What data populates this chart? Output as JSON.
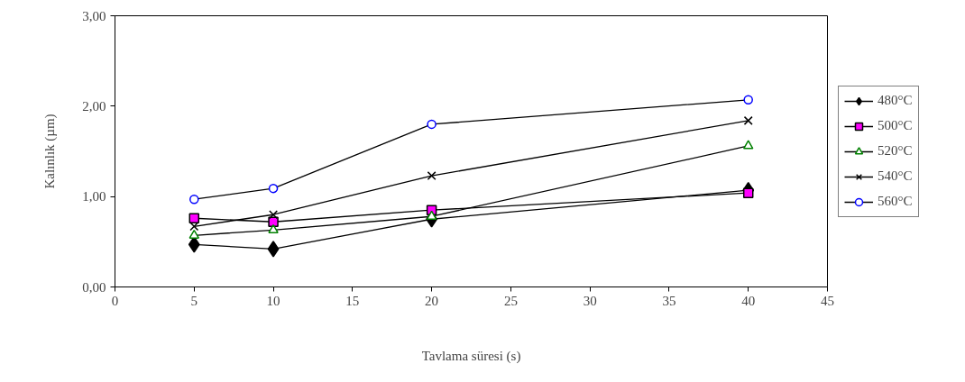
{
  "chart_data": {
    "type": "line",
    "xlabel": "Tavlama süresi (s)",
    "ylabel": "Kalınlık (µm)",
    "x": [
      5,
      10,
      20,
      40
    ],
    "xlim": [
      0,
      45
    ],
    "xticks": [
      0,
      5,
      10,
      15,
      20,
      25,
      30,
      35,
      40,
      45
    ],
    "ylim": [
      0,
      3
    ],
    "yticks": [
      {
        "value": 0,
        "label": "0,00"
      },
      {
        "value": 1,
        "label": "1,00"
      },
      {
        "value": 2,
        "label": "2,00"
      },
      {
        "value": 3,
        "label": "3,00"
      }
    ],
    "grid": false,
    "legend": "right",
    "series": [
      {
        "name": "480°C",
        "color": "#000000",
        "marker": "diamond",
        "values": [
          0.47,
          0.42,
          0.75,
          1.07
        ]
      },
      {
        "name": "500°C",
        "color": "#ff00ff",
        "marker": "square",
        "values": [
          0.76,
          0.72,
          0.85,
          1.04
        ]
      },
      {
        "name": "520°C",
        "color": "#008000",
        "marker": "triangle",
        "values": [
          0.57,
          0.63,
          0.78,
          1.56
        ]
      },
      {
        "name": "540°C",
        "color": "#000000",
        "marker": "cross",
        "values": [
          0.67,
          0.8,
          1.23,
          1.84
        ]
      },
      {
        "name": "560°C",
        "color": "#0000ff",
        "marker": "circle",
        "values": [
          0.97,
          1.09,
          1.8,
          2.07
        ]
      }
    ]
  }
}
